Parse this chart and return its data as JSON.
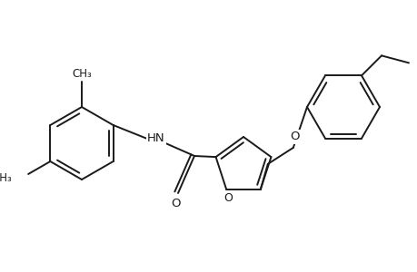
{
  "background_color": "#ffffff",
  "line_color": "#1a1a1a",
  "line_width": 1.4,
  "font_size": 9.5,
  "figsize": [
    4.6,
    3.0
  ],
  "dpi": 100,
  "xlim": [
    0,
    460
  ],
  "ylim": [
    0,
    300
  ]
}
